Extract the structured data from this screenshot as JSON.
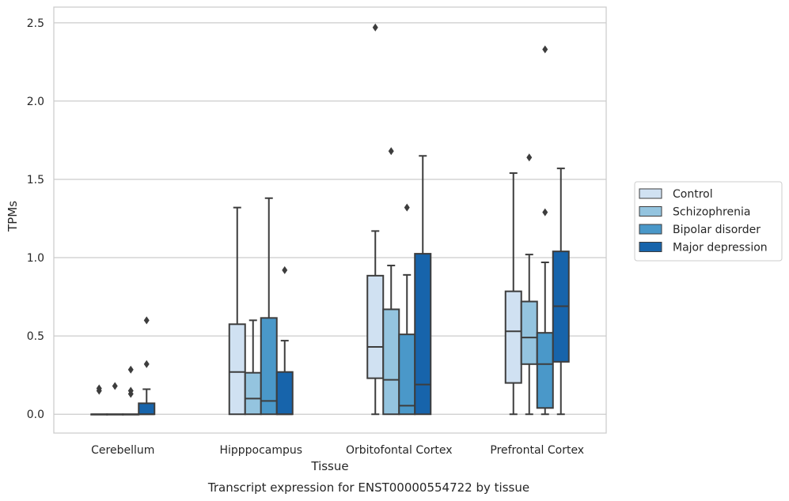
{
  "chart_data": {
    "type": "box",
    "xlabel": "Tissue",
    "ylabel": "TPMs",
    "caption": "Transcript expression for ENST00000554722 by tissue",
    "ylim": [
      -0.12,
      2.6
    ],
    "yticks": [
      0.0,
      0.5,
      1.0,
      1.5,
      2.0,
      2.5
    ],
    "ytick_labels": [
      "0.0",
      "0.5",
      "1.0",
      "1.5",
      "2.0",
      "2.5"
    ],
    "grid": "horizontal",
    "legend_position": "right",
    "categories": [
      "Cerebellum",
      "Hipppocampus",
      "Orbitofontal Cortex",
      "Prefrontal Cortex"
    ],
    "series": [
      {
        "name": "Control",
        "color": "#d0e1f2",
        "boxes": [
          {
            "whislo": 0.0,
            "q1": 0.0,
            "med": 0.0,
            "q3": 0.0,
            "whishi": 0.0,
            "fliers": [
              0.15,
              0.165
            ]
          },
          {
            "whislo": 0.0,
            "q1": 0.0,
            "med": 0.27,
            "q3": 0.575,
            "whishi": 1.32,
            "fliers": []
          },
          {
            "whislo": 0.0,
            "q1": 0.23,
            "med": 0.43,
            "q3": 0.885,
            "whishi": 1.17,
            "fliers": [
              2.47
            ]
          },
          {
            "whislo": 0.0,
            "q1": 0.2,
            "med": 0.53,
            "q3": 0.785,
            "whishi": 1.54,
            "fliers": []
          }
        ]
      },
      {
        "name": "Schizophrenia",
        "color": "#94c4df",
        "boxes": [
          {
            "whislo": 0.0,
            "q1": 0.0,
            "med": 0.0,
            "q3": 0.0,
            "whishi": 0.0,
            "fliers": [
              0.18
            ]
          },
          {
            "whislo": 0.0,
            "q1": 0.0,
            "med": 0.1,
            "q3": 0.265,
            "whishi": 0.6,
            "fliers": []
          },
          {
            "whislo": 0.0,
            "q1": 0.0,
            "med": 0.22,
            "q3": 0.67,
            "whishi": 0.95,
            "fliers": [
              1.68
            ]
          },
          {
            "whislo": 0.0,
            "q1": 0.32,
            "med": 0.49,
            "q3": 0.72,
            "whishi": 1.02,
            "fliers": [
              1.64
            ]
          }
        ]
      },
      {
        "name": "Bipolar disorder",
        "color": "#4a98c9",
        "boxes": [
          {
            "whislo": 0.0,
            "q1": 0.0,
            "med": 0.0,
            "q3": 0.0,
            "whishi": 0.0,
            "fliers": [
              0.13,
              0.15,
              0.285
            ]
          },
          {
            "whislo": 0.0,
            "q1": 0.0,
            "med": 0.085,
            "q3": 0.615,
            "whishi": 1.38,
            "fliers": []
          },
          {
            "whislo": 0.0,
            "q1": 0.0,
            "med": 0.055,
            "q3": 0.51,
            "whishi": 0.89,
            "fliers": [
              1.32
            ]
          },
          {
            "whislo": 0.0,
            "q1": 0.04,
            "med": 0.32,
            "q3": 0.52,
            "whishi": 0.97,
            "fliers": [
              1.29,
              2.33
            ]
          }
        ]
      },
      {
        "name": "Major depression",
        "color": "#1764ab",
        "boxes": [
          {
            "whislo": 0.0,
            "q1": 0.0,
            "med": 0.0,
            "q3": 0.07,
            "whishi": 0.16,
            "fliers": [
              0.32,
              0.6
            ]
          },
          {
            "whislo": 0.0,
            "q1": 0.0,
            "med": 0.0,
            "q3": 0.27,
            "whishi": 0.47,
            "fliers": [
              0.92
            ]
          },
          {
            "whislo": 0.0,
            "q1": 0.0,
            "med": 0.19,
            "q3": 1.025,
            "whishi": 1.65,
            "fliers": []
          },
          {
            "whislo": 0.0,
            "q1": 0.335,
            "med": 0.69,
            "q3": 1.04,
            "whishi": 1.57,
            "fliers": []
          }
        ]
      }
    ]
  }
}
